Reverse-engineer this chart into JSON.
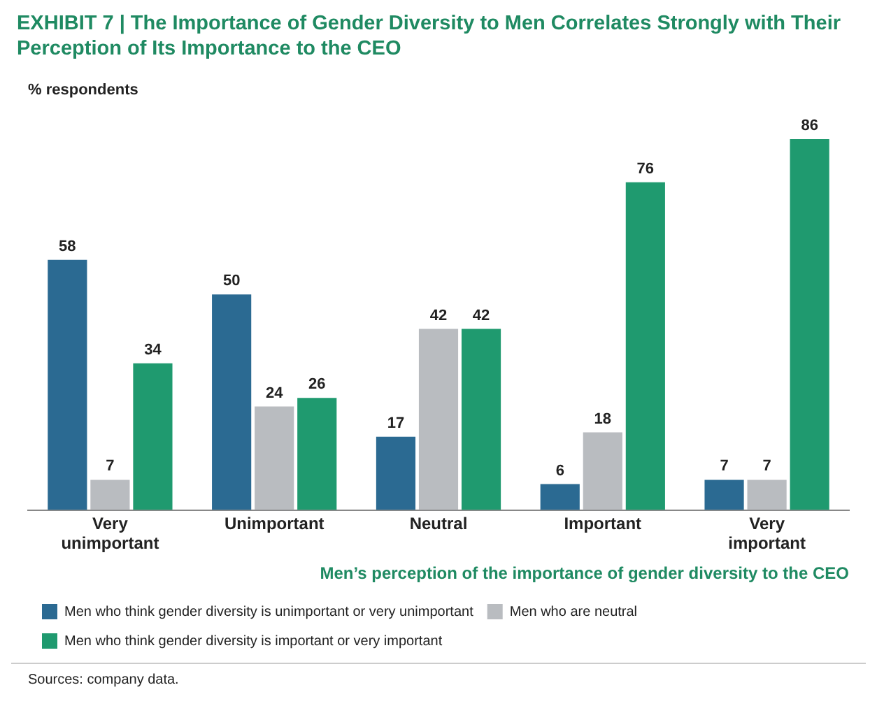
{
  "chart_data": {
    "type": "bar",
    "title": "EXHIBIT 7 | The Importance of Gender Diversity to Men Correlates Strongly with Their Perception of Its Importance to the CEO",
    "ylabel": "% respondents",
    "xlabel": "Men’s perception of the importance of gender diversity to the CEO",
    "categories": [
      "Very unimportant",
      "Unimportant",
      "Neutral",
      "Important",
      "Very important"
    ],
    "series": [
      {
        "name": "Men who think gender diversity is unimportant or very unimportant",
        "color": "#2b6a92",
        "values": [
          58,
          50,
          17,
          6,
          7
        ]
      },
      {
        "name": "Men who are neutral",
        "color": "#b9bcc0",
        "values": [
          7,
          24,
          42,
          18,
          7
        ]
      },
      {
        "name": "Men who think gender diversity is important or very important",
        "color": "#1f9a6f",
        "values": [
          34,
          26,
          42,
          76,
          86
        ]
      }
    ],
    "data_labels": true,
    "legend": "bottom",
    "grid": false,
    "annotations": [
      "Sources: company data."
    ]
  }
}
